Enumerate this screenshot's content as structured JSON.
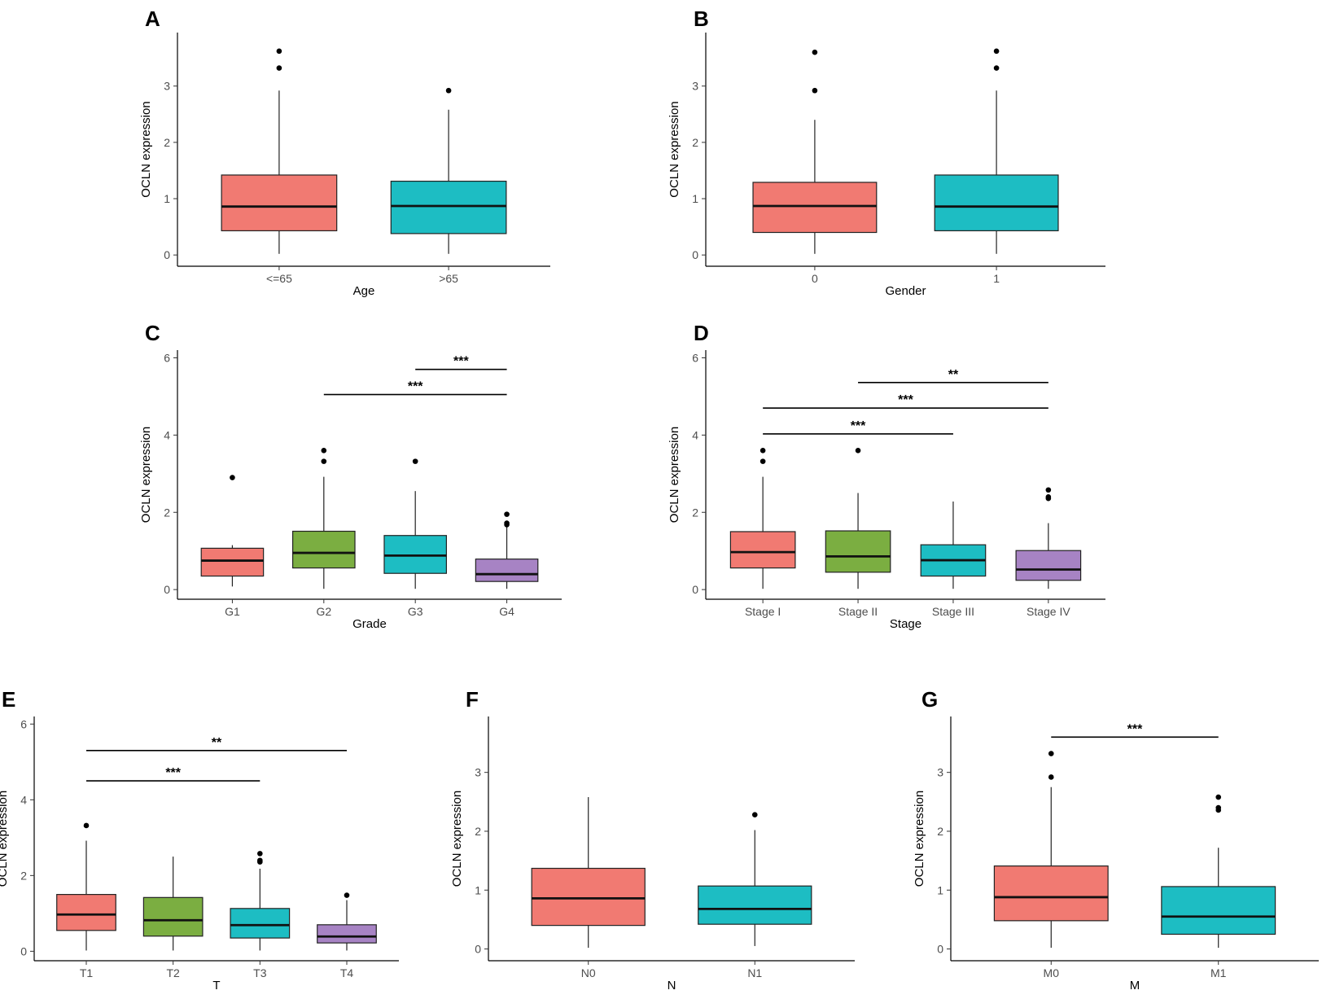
{
  "colors": {
    "red": "#F17A72",
    "green": "#7BAE41",
    "cyan": "#1DBDC3",
    "purple": "#A783C4",
    "axis": "#000000"
  },
  "chart_data": [
    {
      "panel": "A",
      "type": "box",
      "ylabel": "OCLN expression",
      "xlabel": "Age",
      "ylim": [
        -0.2,
        3.95
      ],
      "yticks": [
        0,
        1,
        2,
        3
      ],
      "categories": [
        "<=65",
        ">65"
      ],
      "colors": [
        "red",
        "cyan"
      ],
      "boxes": [
        {
          "min": 0.02,
          "q1": 0.43,
          "median": 0.86,
          "q3": 1.42,
          "max": 2.92,
          "outliers": [
            3.32,
            3.62
          ]
        },
        {
          "min": 0.02,
          "q1": 0.38,
          "median": 0.87,
          "q3": 1.31,
          "max": 2.58,
          "outliers": [
            2.92
          ]
        }
      ],
      "comparisons": []
    },
    {
      "panel": "B",
      "type": "box",
      "ylabel": "OCLN expression",
      "xlabel": "Gender",
      "ylim": [
        -0.2,
        3.95
      ],
      "yticks": [
        0,
        1,
        2,
        3
      ],
      "categories": [
        "0",
        "1"
      ],
      "colors": [
        "red",
        "cyan"
      ],
      "boxes": [
        {
          "min": 0.02,
          "q1": 0.4,
          "median": 0.87,
          "q3": 1.29,
          "max": 2.4,
          "outliers": [
            2.92,
            3.6
          ]
        },
        {
          "min": 0.02,
          "q1": 0.43,
          "median": 0.86,
          "q3": 1.42,
          "max": 2.92,
          "outliers": [
            3.32,
            3.62
          ]
        }
      ],
      "comparisons": []
    },
    {
      "panel": "C",
      "type": "box",
      "ylabel": "OCLN expression",
      "xlabel": "Grade",
      "ylim": [
        -0.25,
        6.2
      ],
      "yticks": [
        0,
        2,
        4,
        6
      ],
      "categories": [
        "G1",
        "G2",
        "G3",
        "G4"
      ],
      "colors": [
        "red",
        "green",
        "cyan",
        "purple"
      ],
      "boxes": [
        {
          "min": 0.08,
          "q1": 0.35,
          "median": 0.75,
          "q3": 1.07,
          "max": 1.15,
          "outliers": [
            2.9
          ]
        },
        {
          "min": 0.02,
          "q1": 0.56,
          "median": 0.95,
          "q3": 1.51,
          "max": 2.92,
          "outliers": [
            3.32,
            3.6
          ]
        },
        {
          "min": 0.02,
          "q1": 0.42,
          "median": 0.88,
          "q3": 1.4,
          "max": 2.55,
          "outliers": [
            3.32
          ]
        },
        {
          "min": 0.02,
          "q1": 0.21,
          "median": 0.4,
          "q3": 0.79,
          "max": 1.62,
          "outliers": [
            1.68,
            1.72,
            1.95
          ]
        }
      ],
      "comparisons": [
        {
          "from": 3,
          "to": 4,
          "y": 5.7,
          "label": "***"
        },
        {
          "from": 2,
          "to": 4,
          "y": 5.05,
          "label": "***"
        }
      ]
    },
    {
      "panel": "D",
      "type": "box",
      "ylabel": "OCLN expression",
      "xlabel": "Stage",
      "ylim": [
        -0.25,
        6.2
      ],
      "yticks": [
        0,
        2,
        4,
        6
      ],
      "categories": [
        "Stage I",
        "Stage II",
        "Stage III",
        "Stage IV"
      ],
      "colors": [
        "red",
        "green",
        "cyan",
        "purple"
      ],
      "boxes": [
        {
          "min": 0.02,
          "q1": 0.56,
          "median": 0.97,
          "q3": 1.5,
          "max": 2.92,
          "outliers": [
            3.32,
            3.6
          ]
        },
        {
          "min": 0.02,
          "q1": 0.45,
          "median": 0.86,
          "q3": 1.52,
          "max": 2.5,
          "outliers": [
            3.6
          ]
        },
        {
          "min": 0.02,
          "q1": 0.35,
          "median": 0.76,
          "q3": 1.16,
          "max": 2.28,
          "outliers": []
        },
        {
          "min": 0.02,
          "q1": 0.24,
          "median": 0.52,
          "q3": 1.01,
          "max": 1.72,
          "outliers": [
            2.36,
            2.4,
            2.58
          ]
        }
      ],
      "comparisons": [
        {
          "from": 2,
          "to": 4,
          "y": 5.36,
          "label": "**"
        },
        {
          "from": 1,
          "to": 4,
          "y": 4.7,
          "label": "***"
        },
        {
          "from": 1,
          "to": 3,
          "y": 4.03,
          "label": "***"
        }
      ]
    },
    {
      "panel": "E",
      "type": "box",
      "ylabel": "OCLN expression",
      "xlabel": "T",
      "ylim": [
        -0.25,
        6.2
      ],
      "yticks": [
        0,
        2,
        4,
        6
      ],
      "categories": [
        "T1",
        "T2",
        "T3",
        "T4"
      ],
      "colors": [
        "red",
        "green",
        "cyan",
        "purple"
      ],
      "boxes": [
        {
          "min": 0.02,
          "q1": 0.55,
          "median": 0.97,
          "q3": 1.5,
          "max": 2.92,
          "outliers": [
            3.32
          ]
        },
        {
          "min": 0.02,
          "q1": 0.4,
          "median": 0.82,
          "q3": 1.42,
          "max": 2.5,
          "outliers": []
        },
        {
          "min": 0.02,
          "q1": 0.35,
          "median": 0.69,
          "q3": 1.13,
          "max": 2.18,
          "outliers": [
            2.36,
            2.4,
            2.58
          ]
        },
        {
          "min": 0.02,
          "q1": 0.22,
          "median": 0.39,
          "q3": 0.7,
          "max": 1.35,
          "outliers": [
            1.48
          ]
        }
      ],
      "comparisons": [
        {
          "from": 1,
          "to": 4,
          "y": 5.3,
          "label": "**"
        },
        {
          "from": 1,
          "to": 3,
          "y": 4.5,
          "label": "***"
        }
      ]
    },
    {
      "panel": "F",
      "type": "box",
      "ylabel": "OCLN expression",
      "xlabel": "N",
      "ylim": [
        -0.2,
        3.95
      ],
      "yticks": [
        0,
        1,
        2,
        3
      ],
      "categories": [
        "N0",
        "N1"
      ],
      "colors": [
        "red",
        "cyan"
      ],
      "boxes": [
        {
          "min": 0.02,
          "q1": 0.4,
          "median": 0.86,
          "q3": 1.37,
          "max": 2.58,
          "outliers": []
        },
        {
          "min": 0.05,
          "q1": 0.42,
          "median": 0.68,
          "q3": 1.07,
          "max": 2.02,
          "outliers": [
            2.28
          ]
        }
      ],
      "comparisons": []
    },
    {
      "panel": "G",
      "type": "box",
      "ylabel": "OCLN expression",
      "xlabel": "M",
      "ylim": [
        -0.2,
        3.95
      ],
      "yticks": [
        0,
        1,
        2,
        3
      ],
      "categories": [
        "M0",
        "M1"
      ],
      "colors": [
        "red",
        "cyan"
      ],
      "boxes": [
        {
          "min": 0.02,
          "q1": 0.48,
          "median": 0.88,
          "q3": 1.41,
          "max": 2.75,
          "outliers": [
            2.92,
            3.32
          ]
        },
        {
          "min": 0.02,
          "q1": 0.25,
          "median": 0.55,
          "q3": 1.06,
          "max": 1.72,
          "outliers": [
            2.36,
            2.4,
            2.58
          ]
        }
      ],
      "comparisons": [
        {
          "from": 1,
          "to": 2,
          "y": 3.6,
          "label": "***"
        }
      ]
    }
  ]
}
